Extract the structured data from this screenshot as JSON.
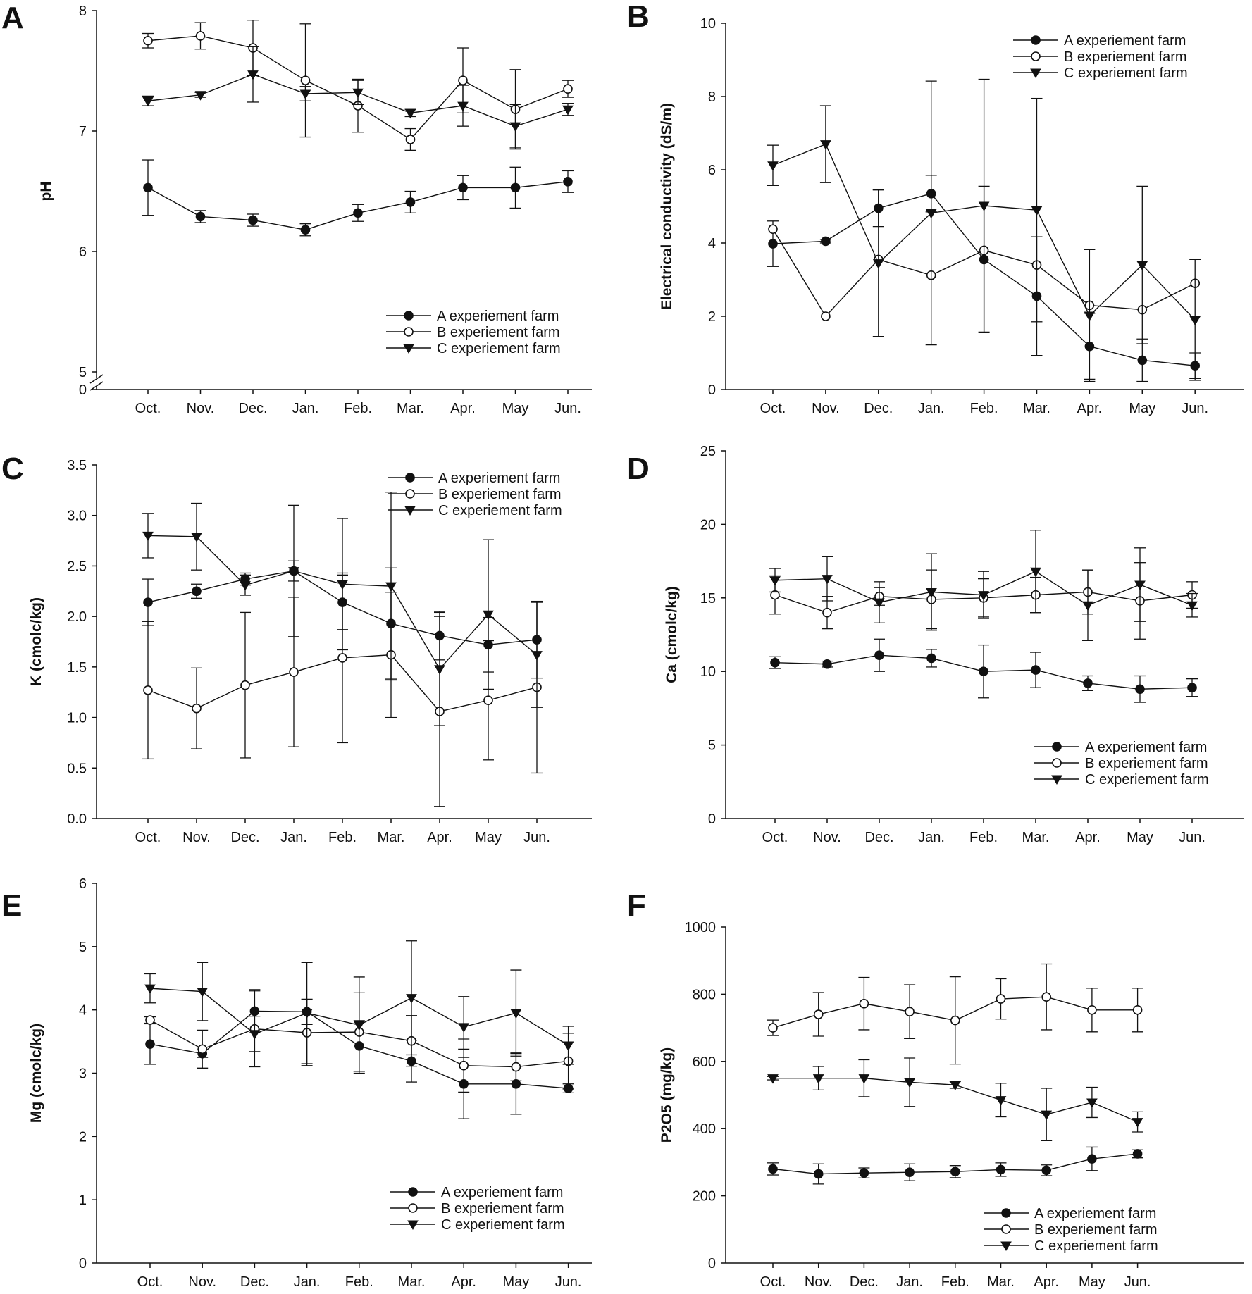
{
  "colors": {
    "ink": "#111111",
    "background": "#ffffff",
    "open_marker_fill": "#ffffff"
  },
  "months": [
    "Oct.",
    "Nov.",
    "Dec.",
    "Jan.",
    "Feb.",
    "Mar.",
    "Apr.",
    "May",
    "Jun."
  ],
  "series_names": [
    "A experiement farm",
    "B experiement farm",
    "C experiement farm"
  ],
  "chart_data": [
    {
      "panel": "A",
      "type": "line",
      "title": "",
      "xlabel": "",
      "ylabel": "pH",
      "ylim": [
        5,
        8
      ],
      "yticks": [
        5,
        6,
        7,
        8
      ],
      "ytick_labels": [
        "5",
        "6",
        "7",
        "8"
      ],
      "axis_break": true,
      "break_zero_label": "0",
      "legend_position": "bottom-right",
      "series": [
        {
          "name": "A experiement farm",
          "marker": "filled-circle",
          "values": [
            6.53,
            6.29,
            6.26,
            6.18,
            6.32,
            6.41,
            6.53,
            6.53,
            6.58
          ],
          "errors": [
            0.23,
            0.05,
            0.05,
            0.05,
            0.07,
            0.09,
            0.1,
            0.17,
            0.09
          ]
        },
        {
          "name": "B experiement farm",
          "marker": "open-circle",
          "values": [
            7.75,
            7.79,
            7.69,
            7.42,
            7.21,
            6.93,
            7.42,
            7.18,
            7.35
          ],
          "errors": [
            0.06,
            0.11,
            0.23,
            0.47,
            0.22,
            0.09,
            0.27,
            0.33,
            0.07
          ]
        },
        {
          "name": "C experiement farm",
          "marker": "filled-triangle",
          "values": [
            7.25,
            7.3,
            7.47,
            7.31,
            7.32,
            7.15,
            7.21,
            7.04,
            7.18
          ],
          "errors": [
            0.04,
            0.02,
            0.23,
            0.06,
            0.1,
            0.03,
            0.17,
            0.18,
            0.05
          ]
        }
      ]
    },
    {
      "panel": "B",
      "type": "line",
      "title": "",
      "xlabel": "",
      "ylabel": "Electrical conductivity (dS/m)",
      "ylim": [
        0,
        10
      ],
      "yticks": [
        0,
        2,
        4,
        6,
        8,
        10
      ],
      "ytick_labels": [
        "0",
        "2",
        "4",
        "6",
        "8",
        "10"
      ],
      "legend_position": "top-right",
      "series": [
        {
          "name": "A experiement farm",
          "marker": "filled-circle",
          "values": [
            3.98,
            4.05,
            4.95,
            5.35,
            3.55,
            2.55,
            1.18,
            0.8,
            0.65
          ],
          "errors": [
            0.62,
            0.05,
            0.5,
            0.5,
            2.0,
            1.62,
            0.9,
            0.58,
            0.35
          ]
        },
        {
          "name": "B experiement farm",
          "marker": "open-circle",
          "values": [
            4.38,
            2.0,
            3.55,
            3.12,
            3.8,
            3.4,
            2.3,
            2.18,
            2.9
          ]
        },
        {
          "name": "C experiement farm",
          "marker": "filled-triangle",
          "values": [
            6.12,
            6.7,
            3.45,
            4.82,
            5.02,
            4.9,
            2.02,
            3.4,
            1.9
          ],
          "errors": [
            0.55,
            1.05,
            2.0,
            3.6,
            3.45,
            3.05,
            1.8,
            2.15,
            1.65
          ]
        }
      ]
    },
    {
      "panel": "C",
      "type": "line",
      "title": "",
      "xlabel": "",
      "ylabel": "K (cmolc/kg)",
      "ylim": [
        0,
        3.5
      ],
      "yticks": [
        0,
        0.5,
        1,
        1.5,
        2,
        2.5,
        3,
        3.5
      ],
      "ytick_labels": [
        "0.0",
        "0.5",
        "1.0",
        "1.5",
        "2.0",
        "2.5",
        "3.0",
        "3.5"
      ],
      "legend_position": "top-right",
      "series": [
        {
          "name": "A experiement farm",
          "marker": "filled-circle",
          "values": [
            2.14,
            2.25,
            2.37,
            2.45,
            2.14,
            1.93,
            1.81,
            1.72,
            1.77
          ],
          "errors": [
            0.23,
            0.07,
            0.06,
            0.1,
            0.27,
            0.55,
            0.24,
            0.27,
            0.38
          ]
        },
        {
          "name": "B experiement farm",
          "marker": "open-circle",
          "values": [
            1.27,
            1.09,
            1.32,
            1.45,
            1.59,
            1.62,
            1.06,
            1.17,
            1.3
          ],
          "errors": [
            0.68,
            0.4,
            0.72,
            0.74,
            0.84,
            0.62,
            0.94,
            0.59,
            0.85
          ]
        },
        {
          "name": "C experiement farm",
          "marker": "filled-triangle",
          "values": [
            2.8,
            2.79,
            2.31,
            2.45,
            2.32,
            2.3,
            1.48,
            2.02,
            1.62
          ],
          "errors": [
            0.22,
            0.33,
            0.1,
            0.65,
            0.65,
            0.93,
            0.56,
            0.74,
            0.52
          ]
        }
      ]
    },
    {
      "panel": "D",
      "type": "line",
      "title": "",
      "xlabel": "",
      "ylabel": "Ca (cmolc/kg)",
      "ylim": [
        0,
        25
      ],
      "yticks": [
        0,
        5,
        10,
        15,
        20,
        25
      ],
      "ytick_labels": [
        "0",
        "5",
        "10",
        "15",
        "20",
        "25"
      ],
      "legend_position": "bottom-right",
      "series": [
        {
          "name": "A experiement farm",
          "marker": "filled-circle",
          "values": [
            10.6,
            10.5,
            11.1,
            10.9,
            10.0,
            10.1,
            9.2,
            8.8,
            8.9
          ],
          "errors": [
            0.4,
            0.2,
            1.1,
            0.6,
            1.8,
            1.2,
            0.5,
            0.9,
            0.6
          ]
        },
        {
          "name": "B experiement farm",
          "marker": "open-circle",
          "values": [
            15.2,
            14.0,
            15.1,
            14.9,
            15.0,
            15.2,
            15.4,
            14.8,
            15.2
          ],
          "errors": [
            1.3,
            1.1,
            0.6,
            2.0,
            1.3,
            1.2,
            1.5,
            2.6,
            0.9
          ]
        },
        {
          "name": "C experiement farm",
          "marker": "filled-triangle",
          "values": [
            16.2,
            16.3,
            14.7,
            15.4,
            15.2,
            16.8,
            14.5,
            15.9,
            14.5
          ],
          "errors": [
            0.8,
            1.5,
            1.4,
            2.6,
            1.6,
            2.8,
            2.4,
            2.5,
            0.8
          ]
        }
      ]
    },
    {
      "panel": "E",
      "type": "line",
      "title": "",
      "xlabel": "",
      "ylabel": "Mg (cmolc/kg)",
      "ylim": [
        0,
        6
      ],
      "yticks": [
        0,
        1,
        2,
        3,
        4,
        5,
        6
      ],
      "ytick_labels": [
        "0",
        "1",
        "2",
        "3",
        "4",
        "5",
        "6"
      ],
      "legend_position": "bottom-right",
      "series": [
        {
          "name": "A experiement farm",
          "marker": "filled-circle",
          "values": [
            3.46,
            3.31,
            3.98,
            3.97,
            3.43,
            3.19,
            2.83,
            2.83,
            2.76
          ],
          "errors": [
            0.32,
            0.06,
            0.34,
            0.2,
            0.4,
            0.33,
            0.55,
            0.48,
            0.07
          ]
        },
        {
          "name": "B experiement farm",
          "marker": "open-circle",
          "values": [
            3.84,
            3.38,
            3.7,
            3.64,
            3.65,
            3.51,
            3.12,
            3.1,
            3.19
          ],
          "errors": [
            0.05,
            0.3,
            0.6,
            0.52,
            0.62,
            0.4,
            0.42,
            0.22,
            0.44
          ]
        },
        {
          "name": "C experiement farm",
          "marker": "filled-triangle",
          "values": [
            4.34,
            4.29,
            3.62,
            3.95,
            3.76,
            4.19,
            3.73,
            3.95,
            3.44
          ],
          "errors": [
            0.23,
            0.46,
            0.28,
            0.8,
            0.76,
            0.9,
            0.48,
            0.68,
            0.3
          ]
        }
      ]
    },
    {
      "panel": "F",
      "type": "line",
      "title": "",
      "xlabel": "",
      "ylabel": "P2O5 (mg/kg)",
      "ylim": [
        0,
        1000
      ],
      "yticks": [
        0,
        200,
        400,
        600,
        800,
        1000
      ],
      "ytick_labels": [
        "0",
        "200",
        "400",
        "600",
        "800",
        "1000"
      ],
      "legend_position": "bottom-right",
      "series": [
        {
          "name": "A experiement farm",
          "marker": "filled-circle",
          "values": [
            280,
            265,
            268,
            270,
            272,
            278,
            276,
            310,
            325
          ],
          "errors": [
            18,
            30,
            15,
            25,
            18,
            20,
            16,
            35,
            12
          ]
        },
        {
          "name": "B experiement farm",
          "marker": "open-circle",
          "values": [
            700,
            740,
            772,
            748,
            722,
            786,
            792,
            753,
            753
          ],
          "errors": [
            23,
            65,
            78,
            80,
            130,
            60,
            98,
            65,
            65
          ]
        },
        {
          "name": "C experiement farm",
          "marker": "filled-triangle",
          "values": [
            550,
            550,
            550,
            538,
            530,
            485,
            442,
            478,
            420
          ],
          "errors": [
            5,
            35,
            55,
            72,
            10,
            50,
            78,
            45,
            30
          ]
        }
      ]
    }
  ]
}
